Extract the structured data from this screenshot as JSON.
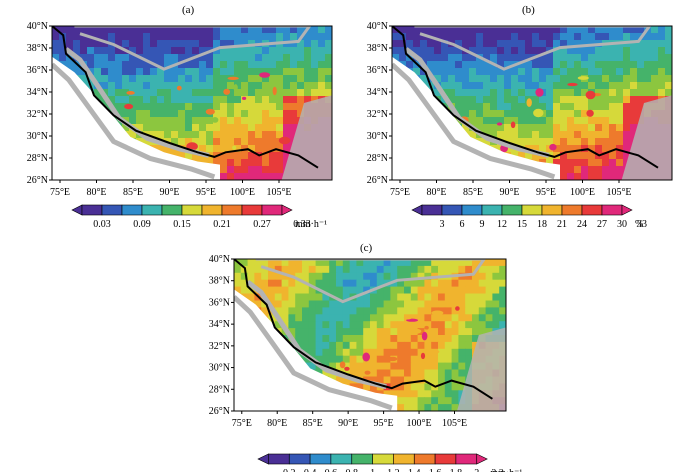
{
  "panels": [
    {
      "id": "a",
      "label": "(a)",
      "lat_labels": [
        "40°N",
        "38°N",
        "36°N",
        "34°N",
        "32°N",
        "30°N",
        "28°N",
        "26°N"
      ],
      "lon_labels": [
        "75°E",
        "80°E",
        "85°E",
        "90°E",
        "95°E",
        "100°E",
        "105°E"
      ],
      "colorbar": {
        "labels": [
          "0.03",
          "0.09",
          "0.15",
          "0.21",
          "0.27",
          "0.33"
        ],
        "unit": "mm·h⁻¹"
      }
    },
    {
      "id": "b",
      "label": "(b)",
      "lat_labels": [
        "40°N",
        "38°N",
        "36°N",
        "34°N",
        "32°N",
        "30°N",
        "28°N",
        "26°N"
      ],
      "lon_labels": [
        "75°E",
        "80°E",
        "85°E",
        "90°E",
        "95°E",
        "100°E",
        "105°E"
      ],
      "colorbar": {
        "labels": [
          "3",
          "6",
          "9",
          "12",
          "15",
          "18",
          "21",
          "24",
          "27",
          "30",
          "33"
        ],
        "unit": "%"
      }
    },
    {
      "id": "c",
      "label": "(c)",
      "lat_labels": [
        "40°N",
        "38°N",
        "36°N",
        "34°N",
        "32°N",
        "30°N",
        "28°N",
        "26°N"
      ],
      "lon_labels": [
        "75°E",
        "80°E",
        "85°E",
        "90°E",
        "95°E",
        "100°E",
        "105°E"
      ],
      "colorbar": {
        "labels": [
          "0.2",
          "0.4",
          "0.6",
          "0.8",
          "1",
          "1.2",
          "1.4",
          "1.6",
          "1.8",
          "2",
          "2.2"
        ],
        "unit": "mm·h⁻¹"
      }
    }
  ],
  "palette": [
    "#4a2f95",
    "#3556b5",
    "#2f8ccc",
    "#3bb3b0",
    "#45b36a",
    "#8cc63f",
    "#d6d93a",
    "#f0b42e",
    "#ee7a2c",
    "#e83a3a",
    "#e0287a"
  ],
  "mask_color": "#b3b3b3",
  "border_color": "#000000"
}
